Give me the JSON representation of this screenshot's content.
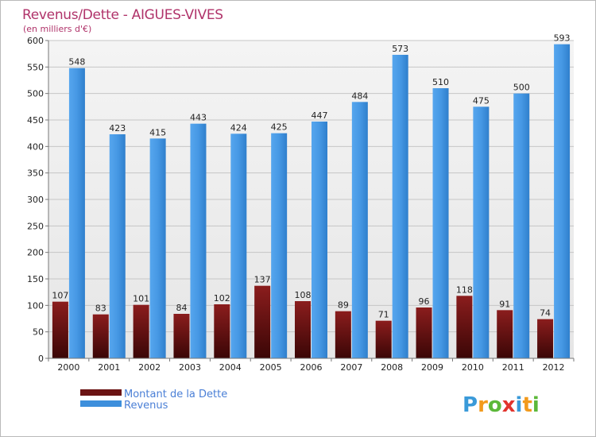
{
  "chart_data": {
    "type": "bar",
    "title": "Revenus/Dette - AIGUES-VIVES",
    "subtitle": "(en milliers d'€)",
    "categories": [
      "2000",
      "2001",
      "2002",
      "2003",
      "2004",
      "2005",
      "2006",
      "2007",
      "2008",
      "2009",
      "2010",
      "2011",
      "2012"
    ],
    "series": [
      {
        "name": "Montant de la Dette",
        "color": "#7a1a1a",
        "values": [
          107,
          83,
          101,
          84,
          102,
          137,
          108,
          89,
          71,
          96,
          118,
          91,
          74
        ]
      },
      {
        "name": "Revenus",
        "color": "#3d8fdc",
        "values": [
          548,
          423,
          415,
          443,
          424,
          425,
          447,
          484,
          573,
          510,
          475,
          500,
          593
        ]
      }
    ],
    "ylim": [
      0,
      600
    ],
    "yticks": [
      0,
      50,
      100,
      150,
      200,
      250,
      300,
      350,
      400,
      450,
      500,
      550,
      600
    ],
    "grid": true,
    "legend_position": "bottom-left"
  },
  "logo": {
    "text": "Proxiti"
  }
}
